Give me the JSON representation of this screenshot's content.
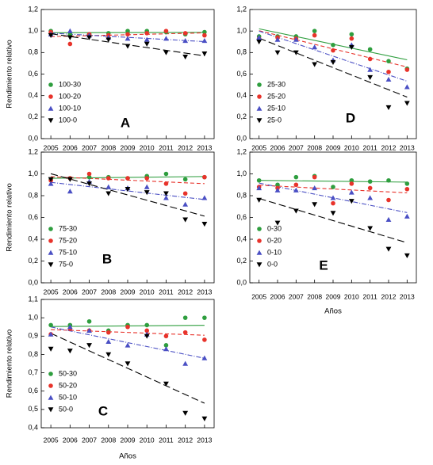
{
  "chart_data": [
    {
      "type": "scatter",
      "panel": "A",
      "ylabel": "Rendimiento relativo",
      "legend": "lower left",
      "x": [
        2005,
        2006,
        2007,
        2008,
        2009,
        2010,
        2011,
        2012,
        2013
      ],
      "xlim": [
        2004.5,
        2013.5
      ],
      "xticks": [
        2005,
        2006,
        2007,
        2008,
        2009,
        2010,
        2011,
        2012,
        2013
      ],
      "ylim": [
        0,
        1.2
      ],
      "yticks": [
        {
          "value": 0,
          "label": "0,0"
        },
        {
          "value": 0.2,
          "label": "0,2"
        },
        {
          "value": 0.4,
          "label": "0,4"
        },
        {
          "value": 0.6,
          "label": "0,6"
        },
        {
          "value": 0.8,
          "label": "0,8"
        },
        {
          "value": 1,
          "label": "1,0"
        },
        {
          "value": 1.2,
          "label": "1,2"
        }
      ],
      "series": [
        {
          "name": "100-30",
          "color": "#2e9e3e",
          "marker": "circle",
          "dash": "none",
          "values": [
            1.0,
            0.97,
            0.97,
            0.98,
            1.0,
            1.0,
            0.99,
            0.97,
            0.99
          ]
        },
        {
          "name": "100-20",
          "color": "#e8332b",
          "marker": "circle",
          "dash": "5,3",
          "values": [
            0.99,
            0.88,
            0.97,
            0.96,
            0.97,
            0.98,
            1.0,
            0.98,
            0.96
          ]
        },
        {
          "name": "100-10",
          "color": "#4a4fc4",
          "marker": "triangle-up",
          "dash": "6,2,1,2",
          "values": [
            0.97,
            1.0,
            0.96,
            0.94,
            0.93,
            0.92,
            0.93,
            0.91,
            0.91
          ]
        },
        {
          "name": "100-0",
          "color": "#000000",
          "marker": "triangle-down",
          "dash": "9,4",
          "values": [
            0.96,
            0.94,
            0.94,
            0.92,
            0.86,
            0.88,
            0.8,
            0.76,
            0.79
          ]
        }
      ]
    },
    {
      "type": "scatter",
      "panel": "D",
      "legend": "lower left",
      "x": [
        2005,
        2006,
        2007,
        2008,
        2009,
        2010,
        2011,
        2012,
        2013
      ],
      "xlim": [
        2004.5,
        2013.5
      ],
      "xticks": [
        2005,
        2006,
        2007,
        2008,
        2009,
        2010,
        2011,
        2012,
        2013
      ],
      "ylim": [
        0,
        1.2
      ],
      "yticks": [
        {
          "value": 0,
          "label": "0,0"
        },
        {
          "value": 0.2,
          "label": "0,2"
        },
        {
          "value": 0.4,
          "label": "0,4"
        },
        {
          "value": 0.6,
          "label": "0,6"
        },
        {
          "value": 0.8,
          "label": "0,8"
        },
        {
          "value": 1,
          "label": "1,0"
        },
        {
          "value": 1.2,
          "label": "1,2"
        }
      ],
      "series": [
        {
          "name": "25-30",
          "color": "#2e9e3e",
          "marker": "circle",
          "dash": "none",
          "values": [
            0.95,
            0.95,
            0.95,
            1.0,
            0.87,
            0.97,
            0.83,
            0.72,
            0.65
          ]
        },
        {
          "name": "25-20",
          "color": "#e8332b",
          "marker": "circle",
          "dash": "5,3",
          "values": [
            0.93,
            0.94,
            0.93,
            0.96,
            0.82,
            0.93,
            0.74,
            0.62,
            0.64
          ]
        },
        {
          "name": "25-10",
          "color": "#4a4fc4",
          "marker": "triangle-up",
          "dash": "6,2,1,2",
          "values": [
            0.94,
            0.92,
            0.92,
            0.85,
            0.73,
            0.87,
            0.64,
            0.55,
            0.48
          ]
        },
        {
          "name": "25-0",
          "color": "#000000",
          "marker": "triangle-down",
          "dash": "9,4",
          "values": [
            0.9,
            0.8,
            0.8,
            0.69,
            0.71,
            0.85,
            0.57,
            0.29,
            0.33
          ]
        }
      ]
    },
    {
      "type": "scatter",
      "panel": "B",
      "ylabel": "Rendimiento relativo",
      "legend": "lower left",
      "x": [
        2005,
        2006,
        2007,
        2008,
        2009,
        2010,
        2011,
        2012,
        2013
      ],
      "xlim": [
        2004.5,
        2013.5
      ],
      "xticks": [
        2005,
        2006,
        2007,
        2008,
        2009,
        2010,
        2011,
        2012,
        2013
      ],
      "ylim": [
        0,
        1.2
      ],
      "yticks": [
        {
          "value": 0,
          "label": "0,0"
        },
        {
          "value": 0.2,
          "label": "0,2"
        },
        {
          "value": 0.4,
          "label": "0,4"
        },
        {
          "value": 0.6,
          "label": "0,6"
        },
        {
          "value": 0.8,
          "label": "0,8"
        },
        {
          "value": 1,
          "label": "1,0"
        },
        {
          "value": 1.2,
          "label": "1,2"
        }
      ],
      "series": [
        {
          "name": "75-30",
          "color": "#2e9e3e",
          "marker": "circle",
          "dash": "none",
          "values": [
            0.95,
            0.96,
            0.97,
            0.97,
            0.96,
            0.98,
            1.0,
            0.95,
            0.97
          ]
        },
        {
          "name": "75-20",
          "color": "#e8332b",
          "marker": "circle",
          "dash": "5,3",
          "values": [
            0.94,
            0.96,
            1.0,
            0.96,
            0.96,
            0.96,
            0.91,
            0.82,
            0.97
          ]
        },
        {
          "name": "75-10",
          "color": "#4a4fc4",
          "marker": "triangle-up",
          "dash": "6,2,1,2",
          "values": [
            0.91,
            0.84,
            0.93,
            0.88,
            0.87,
            0.88,
            0.78,
            0.72,
            0.78
          ]
        },
        {
          "name": "75-0",
          "color": "#000000",
          "marker": "triangle-down",
          "dash": "9,4",
          "values": [
            0.95,
            0.95,
            0.91,
            0.82,
            0.86,
            0.83,
            0.82,
            0.58,
            0.54
          ]
        }
      ]
    },
    {
      "type": "scatter",
      "panel": "E",
      "xlabel": "Años",
      "legend": "lower left",
      "x": [
        2005,
        2006,
        2007,
        2008,
        2009,
        2010,
        2011,
        2012,
        2013
      ],
      "xlim": [
        2004.5,
        2013.5
      ],
      "xticks": [
        2005,
        2006,
        2007,
        2008,
        2009,
        2010,
        2011,
        2012,
        2013
      ],
      "ylim": [
        0,
        1.2
      ],
      "yticks": [
        {
          "value": 0,
          "label": "0,0"
        },
        {
          "value": 0.2,
          "label": "0,2"
        },
        {
          "value": 0.4,
          "label": "0,4"
        },
        {
          "value": 0.6,
          "label": "0,6"
        },
        {
          "value": 0.8,
          "label": "0,8"
        },
        {
          "value": 1,
          "label": "1,0"
        },
        {
          "value": 1.2,
          "label": "1,2"
        }
      ],
      "series": [
        {
          "name": "0-30",
          "color": "#2e9e3e",
          "marker": "circle",
          "dash": "none",
          "values": [
            0.94,
            0.9,
            0.97,
            0.98,
            0.88,
            0.94,
            0.93,
            0.94,
            0.91
          ]
        },
        {
          "name": "0-20",
          "color": "#e8332b",
          "marker": "circle",
          "dash": "5,3",
          "values": [
            0.88,
            0.87,
            0.9,
            0.97,
            0.73,
            0.91,
            0.87,
            0.76,
            0.86
          ]
        },
        {
          "name": "0-10",
          "color": "#4a4fc4",
          "marker": "triangle-up",
          "dash": "6,2,1,2",
          "values": [
            0.87,
            0.85,
            0.85,
            0.87,
            0.78,
            0.83,
            0.78,
            0.58,
            0.61
          ]
        },
        {
          "name": "0-0",
          "color": "#000000",
          "marker": "triangle-down",
          "dash": "9,4",
          "values": [
            0.76,
            0.55,
            0.66,
            0.72,
            0.64,
            0.75,
            0.5,
            0.31,
            0.25
          ]
        }
      ]
    },
    {
      "type": "scatter",
      "panel": "C",
      "ylabel": "Rendimiento relativo",
      "xlabel": "Años",
      "legend": "lower left",
      "x": [
        2005,
        2006,
        2007,
        2008,
        2009,
        2010,
        2011,
        2012,
        2013
      ],
      "xlim": [
        2004.5,
        2013.5
      ],
      "xticks": [
        2005,
        2006,
        2007,
        2008,
        2009,
        2010,
        2011,
        2012,
        2013
      ],
      "ylim": [
        0.4,
        1.1
      ],
      "yticks": [
        {
          "value": 0.4,
          "label": "0,4"
        },
        {
          "value": 0.5,
          "label": "0,5"
        },
        {
          "value": 0.6,
          "label": "0,6"
        },
        {
          "value": 0.7,
          "label": "0,7"
        },
        {
          "value": 0.8,
          "label": "0,8"
        },
        {
          "value": 0.9,
          "label": "0,9"
        },
        {
          "value": 1,
          "label": "1,0"
        },
        {
          "value": 1.1,
          "label": "1,1"
        }
      ],
      "series": [
        {
          "name": "50-30",
          "color": "#2e9e3e",
          "marker": "circle",
          "dash": "none",
          "values": [
            0.96,
            0.96,
            0.98,
            0.93,
            0.96,
            0.96,
            0.85,
            1.0,
            1.0
          ]
        },
        {
          "name": "50-20",
          "color": "#e8332b",
          "marker": "circle",
          "dash": "5,3",
          "values": [
            0.91,
            0.94,
            0.93,
            0.92,
            0.95,
            0.93,
            0.9,
            0.92,
            0.88
          ]
        },
        {
          "name": "50-10",
          "color": "#4a4fc4",
          "marker": "triangle-up",
          "dash": "6,2,1,2",
          "values": [
            0.91,
            0.95,
            0.93,
            0.87,
            0.85,
            0.91,
            0.83,
            0.75,
            0.78
          ]
        },
        {
          "name": "50-0",
          "color": "#000000",
          "marker": "triangle-down",
          "dash": "9,4",
          "values": [
            0.83,
            0.82,
            0.85,
            0.8,
            0.75,
            0.9,
            0.64,
            0.48,
            0.45
          ]
        }
      ]
    }
  ]
}
